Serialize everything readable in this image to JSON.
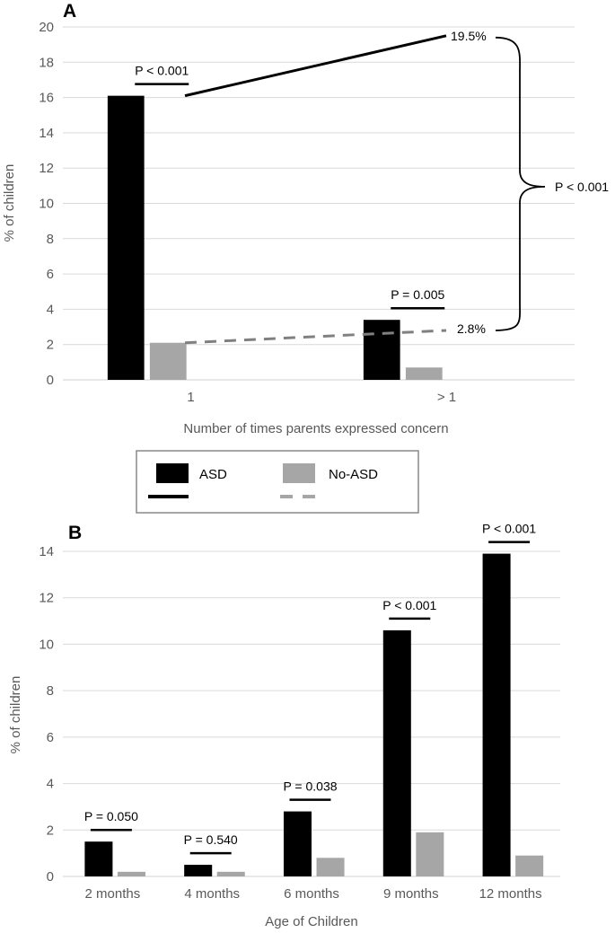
{
  "chart_data": [
    {
      "type": "bar",
      "panel_label": "A",
      "categories": [
        "1",
        "> 1"
      ],
      "series": [
        {
          "name": "ASD",
          "values": [
            16.1,
            3.4
          ],
          "color": "#000000"
        },
        {
          "name": "No-ASD",
          "values": [
            2.1,
            0.7
          ],
          "color": "#a6a6a6"
        }
      ],
      "xlabel": "Number of times parents expressed concern",
      "ylabel": "% of children",
      "ylim": [
        0,
        20
      ],
      "yticks": [
        "0",
        "2",
        "4",
        "6",
        "8",
        "10",
        "12",
        "14",
        "16",
        "18",
        "20"
      ],
      "grid": true,
      "annotations": [
        {
          "category": "1",
          "text": "P < 0.001"
        },
        {
          "category": "> 1",
          "text": "P = 0.005"
        }
      ],
      "trend_lines": [
        {
          "series": "ASD",
          "from": 16.1,
          "to": 19.5,
          "label": "19.5%",
          "style": "solid"
        },
        {
          "series": "No-ASD",
          "from": 2.1,
          "to": 2.8,
          "label": "2.8%",
          "style": "dashed"
        }
      ],
      "bracket_label": "P < 0.001"
    },
    {
      "type": "bar",
      "panel_label": "B",
      "categories": [
        "2 months",
        "4 months",
        "6 months",
        "9 months",
        "12 months"
      ],
      "series": [
        {
          "name": "ASD",
          "values": [
            1.5,
            0.5,
            2.8,
            10.6,
            13.9
          ],
          "color": "#000000"
        },
        {
          "name": "No-ASD",
          "values": [
            0.2,
            0.2,
            0.8,
            1.9,
            0.9
          ],
          "color": "#a6a6a6"
        }
      ],
      "xlabel": "Age of Children",
      "ylabel": "% of children",
      "ylim": [
        0,
        14
      ],
      "yticks": [
        "0",
        "2",
        "4",
        "6",
        "8",
        "10",
        "12",
        "14"
      ],
      "grid": true,
      "annotations": [
        {
          "category": "2 months",
          "text": "P = 0.050"
        },
        {
          "category": "4 months",
          "text": "P = 0.540"
        },
        {
          "category": "6 months",
          "text": "P  = 0.038"
        },
        {
          "category": "9 months",
          "text": "P < 0.001"
        },
        {
          "category": "12 months",
          "text": "P < 0.001"
        }
      ]
    }
  ],
  "legend": {
    "placement": "between-panels",
    "items": [
      {
        "label": "ASD",
        "color": "#000000",
        "line": "solid"
      },
      {
        "label": "No-ASD",
        "color": "#a6a6a6",
        "line": "dashed"
      }
    ]
  }
}
